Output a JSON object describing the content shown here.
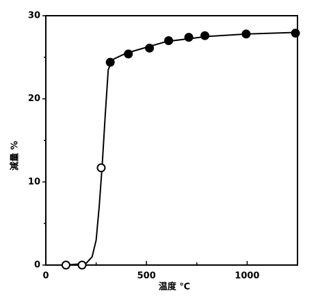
{
  "chart_data": {
    "type": "scatter",
    "xlabel": "温度 ℃",
    "ylabel": "減量 %",
    "xlim": [
      0,
      1250
    ],
    "ylim": [
      0,
      30
    ],
    "xticks": [
      0,
      500,
      1000
    ],
    "yticks": [
      0,
      10,
      20,
      30
    ],
    "xminor": [
      250,
      750
    ],
    "yminor": [
      5,
      15,
      25
    ],
    "color": "#000000",
    "series": [
      {
        "marker": "open",
        "x": [
          100,
          180,
          275
        ],
        "values": [
          0,
          0,
          11.7
        ]
      },
      {
        "marker": "filled",
        "x": [
          320,
          410,
          515,
          610,
          710,
          790,
          995,
          1240
        ],
        "values": [
          24.4,
          25.4,
          26.1,
          27.0,
          27.4,
          27.6,
          27.8,
          27.9
        ]
      }
    ],
    "curve": {
      "x": [
        100,
        200,
        230,
        250,
        265,
        280,
        295,
        310,
        330,
        400,
        500,
        600,
        800,
        1000,
        1250
      ],
      "values": [
        0,
        0.2,
        1,
        3,
        7,
        12,
        18,
        23.5,
        24.7,
        25.5,
        26.2,
        26.9,
        27.5,
        27.8,
        28.0
      ]
    }
  }
}
